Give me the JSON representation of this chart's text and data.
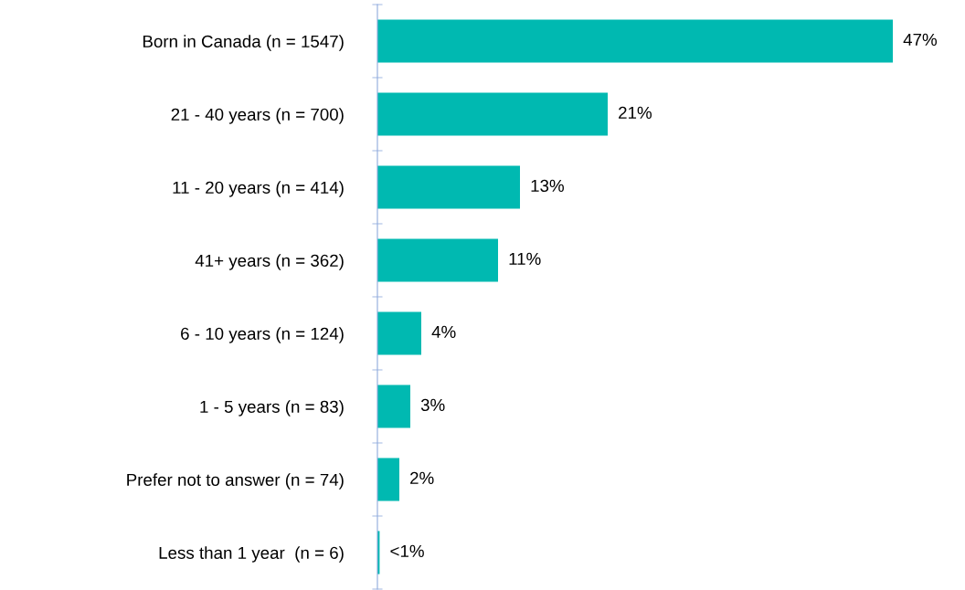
{
  "chart_data": {
    "type": "bar",
    "orientation": "horizontal",
    "categories": [
      "Born in Canada (n = 1547)",
      "21 - 40 years (n = 700)",
      "11 - 20 years (n = 414)",
      "41+ years (n = 362)",
      "6 - 10 years (n = 124)",
      "1 - 5 years (n = 83)",
      "Prefer not to answer (n = 74)",
      "Less than 1 year  (n = 6)"
    ],
    "values": [
      47,
      21,
      13,
      11,
      4,
      3,
      2,
      0.2
    ],
    "value_labels": [
      "47%",
      "21%",
      "13%",
      "11%",
      "4%",
      "3%",
      "2%",
      "<1%"
    ],
    "color": "#00b9b1",
    "grid": false,
    "legend": false
  }
}
